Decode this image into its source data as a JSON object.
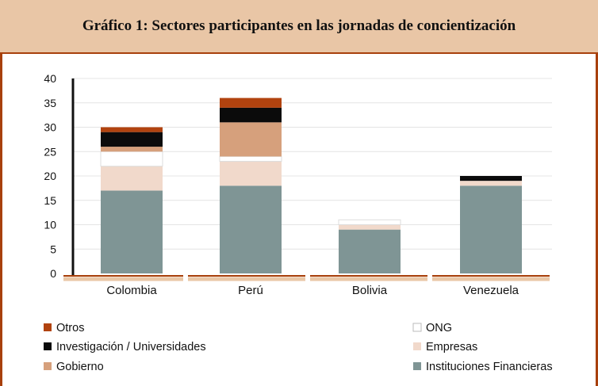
{
  "chart_data": {
    "type": "bar",
    "stacked": true,
    "title": "Gráfico 1: Sectores participantes en las jornadas de concientización",
    "categories": [
      "Colombia",
      "Perú",
      "Bolivia",
      "Venezuela"
    ],
    "ylim": [
      0,
      40
    ],
    "yticks": [
      "0",
      "5",
      "10",
      "15",
      "20",
      "25",
      "30",
      "35",
      "40"
    ],
    "grid": true,
    "legend_position": "bottom",
    "series": [
      {
        "name": "Instituciones Financieras",
        "color": "#7f9595",
        "values": [
          17,
          18,
          9,
          18
        ]
      },
      {
        "name": "Empresas",
        "color": "#f1d9cb",
        "values": [
          5,
          5,
          1,
          1
        ]
      },
      {
        "name": "ONG",
        "color": "#ffffff",
        "values": [
          3,
          1,
          1,
          0
        ]
      },
      {
        "name": "Gobierno",
        "color": "#d6a07c",
        "values": [
          1,
          7,
          0,
          0
        ]
      },
      {
        "name": "Investigación / Universidades",
        "color": "#0b0b0b",
        "values": [
          3,
          3,
          0,
          1
        ]
      },
      {
        "name": "Otros",
        "color": "#b1430f",
        "values": [
          1,
          2,
          0,
          0
        ]
      }
    ]
  },
  "legend": {
    "left": [
      "Otros",
      "Investigación / Universidades",
      "Gobierno"
    ],
    "right": [
      "ONG",
      "Empresas",
      "Instituciones Financieras"
    ]
  },
  "colors": {
    "frame": "#a8400c",
    "header_bg": "#e9c6a6",
    "axis": "#a8400c"
  }
}
